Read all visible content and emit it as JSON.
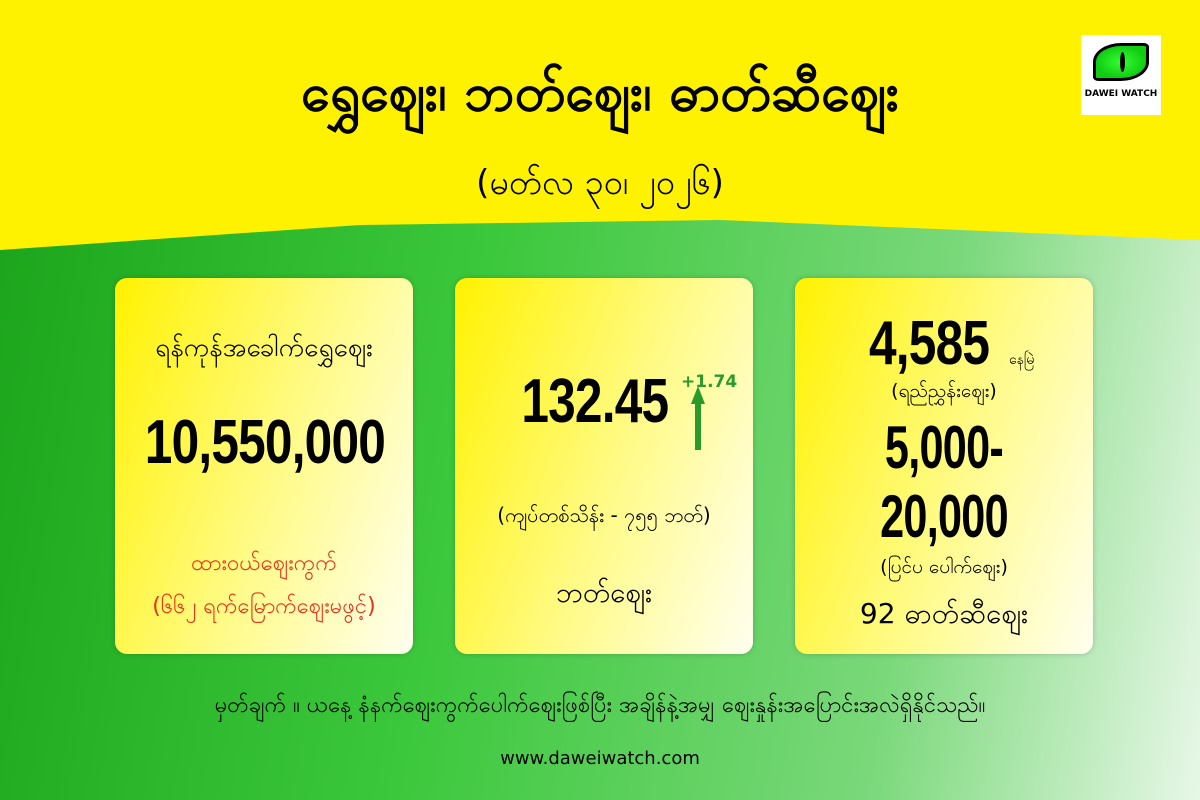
{
  "header": {
    "title": "ရွှေဈေး၊ ဘတ်ဈေး၊ ဓာတ်ဆီဈေး",
    "date": "(မတ်လ ၃၀၊ ၂၀၂၆)"
  },
  "logo": {
    "text": "DAWEI WATCH",
    "icon": "green-eye-icon"
  },
  "gold": {
    "label": "ရန်ကုန်အခေါက်ရွှေဈေး",
    "price": "10,550,000",
    "market": "ထားဝယ်ဈေးကွက်",
    "note": "(၆၆၂ ရက်မြောက်ဈေးမဖွင့်)"
  },
  "baht": {
    "price": "132.45",
    "change": "+1.74",
    "trend": "up",
    "note": "(ကျပ်တစ်သိန်း - ၇၅၅ ဘတ်)",
    "label": "ဘတ်ဈေး"
  },
  "fuel": {
    "ref_price": "4,585",
    "ref_status": "နေမြဲ",
    "ref_label": "(ရည်ညွှန်းဈေး)",
    "outside_price": "5,000-20,000",
    "outside_label": "(ပြင်ပ ပေါက်ဈေး)",
    "label": "92 ဓာတ်ဆီဈေး"
  },
  "footer": {
    "note": "မှတ်ချက် ။ ယနေ့ နံနက်ဈေးကွက်ပေါက်ဈေးဖြစ်ပြီး အချိန်နဲ့အမျှ ဈေးနှုန်းအပြောင်းအလဲရှိနိုင်သည်။",
    "url": "www.daweiwatch.com"
  },
  "colors": {
    "yellow": "#fff200",
    "green": "#2a9b2a",
    "red": "#e8301a"
  }
}
